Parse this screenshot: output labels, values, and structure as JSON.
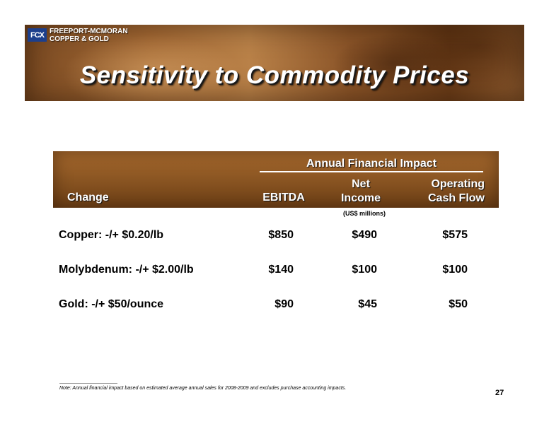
{
  "header": {
    "logo_mark": "FCX",
    "logo_line1": "FREEPORT-MCMORAN",
    "logo_line2": "COPPER & GOLD",
    "title": "Sensitivity to Commodity Prices"
  },
  "table": {
    "group_header": "Annual Financial Impact",
    "col_change": "Change",
    "col_ebitda": "EBITDA",
    "col_net_line1": "Net",
    "col_net_line2": "Income",
    "col_ocf_line1": "Operating",
    "col_ocf_line2": "Cash Flow",
    "units": "(US$ millions)",
    "rows": [
      {
        "label": "Copper: -/+ $0.20/lb",
        "ebitda": "$850",
        "net_income": "$490",
        "operating_cash_flow": "$575"
      },
      {
        "label": "Molybdenum: -/+ $2.00/lb",
        "ebitda": "$140",
        "net_income": "$100",
        "operating_cash_flow": "$100"
      },
      {
        "label": "Gold: -/+ $50/ounce",
        "ebitda": "$90",
        "net_income": "$45",
        "operating_cash_flow": "$50"
      }
    ]
  },
  "footer": {
    "note": "Note:  Annual financial impact based on estimated average annual sales for 2008-2009 and excludes purchase accounting impacts.",
    "page_number": "27"
  },
  "colors": {
    "banner_brown": "#a56a35",
    "header_brown": "#8a5522",
    "logo_blue": "#1d3f8c"
  }
}
